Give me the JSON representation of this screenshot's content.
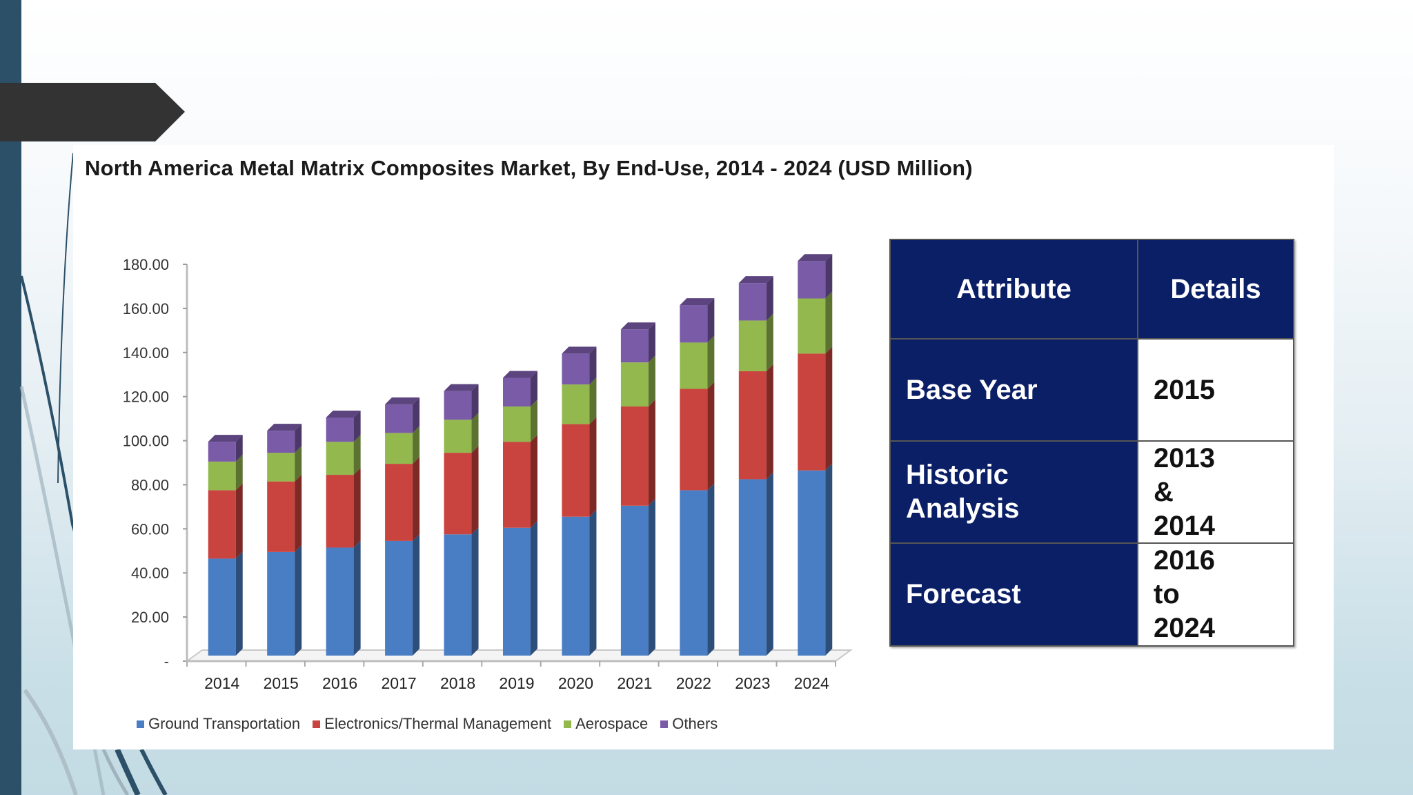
{
  "slide": {
    "accent_bar_color": "#2c5068",
    "banner_color": "#333333"
  },
  "chart_title": "North America Metal Matrix Composites Market, By End-Use, 2014 - 2024 (USD Million)",
  "chart_data": {
    "type": "bar",
    "stacked": true,
    "style": "3d-column",
    "title": "North America Metal Matrix Composites Market, By End-Use, 2014 - 2024 (USD Million)",
    "xlabel": "",
    "ylabel": "",
    "ylim": [
      0,
      180
    ],
    "yticks": [
      "-",
      "20.00",
      "40.00",
      "60.00",
      "80.00",
      "100.00",
      "120.00",
      "140.00",
      "160.00",
      "180.00"
    ],
    "grid": false,
    "legend_position": "bottom",
    "categories": [
      "2014",
      "2015",
      "2016",
      "2017",
      "2018",
      "2019",
      "2020",
      "2021",
      "2022",
      "2023",
      "2024"
    ],
    "series": [
      {
        "name": "Ground Transportation",
        "color": "#4a7ec4",
        "values": [
          44,
          47,
          49,
          52,
          55,
          58,
          63,
          68,
          75,
          80,
          84
        ]
      },
      {
        "name": "Electronics/Thermal Management",
        "color": "#c9433f",
        "values": [
          31,
          32,
          33,
          35,
          37,
          39,
          42,
          45,
          46,
          49,
          53
        ]
      },
      {
        "name": "Aerospace",
        "color": "#93b84d",
        "values": [
          13,
          13,
          15,
          14,
          15,
          16,
          18,
          20,
          21,
          23,
          25
        ]
      },
      {
        "name": "Others",
        "color": "#7a5ba8",
        "values": [
          9,
          10,
          11,
          13,
          13,
          13,
          14,
          15,
          17,
          17,
          17
        ]
      }
    ]
  },
  "table": {
    "headers": [
      "Attribute",
      "Details"
    ],
    "rows": [
      {
        "attribute": "Base Year",
        "details": "2015"
      },
      {
        "attribute": "Historic Analysis",
        "details": "2013 & 2014"
      },
      {
        "attribute": "Forecast",
        "details": "2016 to 2024"
      }
    ]
  }
}
